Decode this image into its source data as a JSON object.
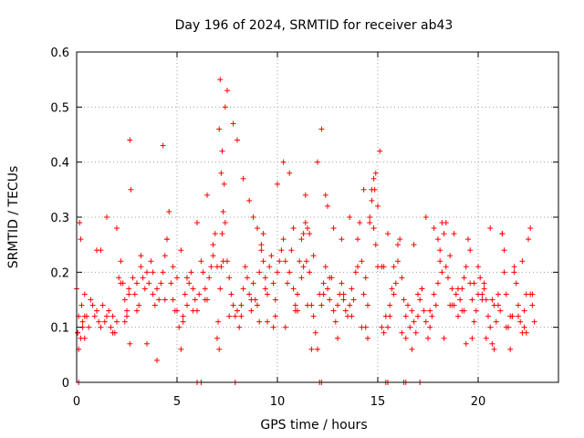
{
  "chart_data": {
    "type": "scatter",
    "title": "Day 196 of 2024, SRMTID for receiver ab43",
    "xlabel": "GPS time / hours",
    "ylabel": "SRMTID / TECUs",
    "xlim": [
      0,
      24
    ],
    "ylim": [
      0,
      0.6
    ],
    "xticks": [
      0,
      5,
      10,
      15,
      20
    ],
    "xtick_labels": [
      "0",
      "5",
      "10",
      "15",
      "20"
    ],
    "yticks": [
      0,
      0.1,
      0.2,
      0.3,
      0.4,
      0.5,
      0.6
    ],
    "ytick_labels": [
      "0",
      "0.1",
      "0.2",
      "0.3",
      "0.4",
      "0.5",
      "0.6"
    ],
    "grid": true,
    "marker": "+",
    "color": "#ff0000",
    "series": [
      {
        "name": "SRMTID",
        "x": [
          0.0,
          0.05,
          0.1,
          0.15,
          0.2,
          0.25,
          0.3,
          0.4,
          0.5,
          0.6,
          0.7,
          0.8,
          0.9,
          1.0,
          1.1,
          1.2,
          1.3,
          1.4,
          1.5,
          1.6,
          1.7,
          1.8,
          1.9,
          2.0,
          2.1,
          2.2,
          2.3,
          2.4,
          2.5,
          2.6,
          2.65,
          2.7,
          2.8,
          2.9,
          3.0,
          3.1,
          3.2,
          3.3,
          3.4,
          3.5,
          3.6,
          3.7,
          3.8,
          3.9,
          4.0,
          4.1,
          4.2,
          4.3,
          4.4,
          4.5,
          4.6,
          4.7,
          4.8,
          4.9,
          5.0,
          5.1,
          5.2,
          5.3,
          5.4,
          5.5,
          5.6,
          5.7,
          5.8,
          5.9,
          6.0,
          6.1,
          6.2,
          6.3,
          6.4,
          6.5,
          6.6,
          6.7,
          6.8,
          6.9,
          7.0,
          7.1,
          7.15,
          7.2,
          7.25,
          7.3,
          7.35,
          7.4,
          7.5,
          7.6,
          7.7,
          7.8,
          7.9,
          8.0,
          8.1,
          8.2,
          8.3,
          8.4,
          8.5,
          8.6,
          8.7,
          8.8,
          8.9,
          9.0,
          9.1,
          9.2,
          9.3,
          9.4,
          9.5,
          9.6,
          9.7,
          9.8,
          9.9,
          10.0,
          10.1,
          10.2,
          10.3,
          10.4,
          10.5,
          10.6,
          10.7,
          10.8,
          10.9,
          11.0,
          11.1,
          11.2,
          11.3,
          11.4,
          11.5,
          11.6,
          11.7,
          11.8,
          11.9,
          12.0,
          12.1,
          12.2,
          12.3,
          12.4,
          12.5,
          12.6,
          12.7,
          12.8,
          12.9,
          13.0,
          13.1,
          13.2,
          13.3,
          13.4,
          13.5,
          13.6,
          13.7,
          13.8,
          13.9,
          14.0,
          14.1,
          14.2,
          14.3,
          14.4,
          14.5,
          14.6,
          14.7,
          14.8,
          14.9,
          15.0,
          15.1,
          15.2,
          15.3,
          15.4,
          15.5,
          15.6,
          15.7,
          15.8,
          15.9,
          16.0,
          16.1,
          16.2,
          16.3,
          16.4,
          16.5,
          16.6,
          16.7,
          16.8,
          16.9,
          17.0,
          17.1,
          17.2,
          17.3,
          17.4,
          17.5,
          17.6,
          17.7,
          17.8,
          17.9,
          18.0,
          18.1,
          18.2,
          18.3,
          18.4,
          18.5,
          18.6,
          18.7,
          18.8,
          18.9,
          19.0,
          19.1,
          19.2,
          19.3,
          19.4,
          19.5,
          19.6,
          19.7,
          19.8,
          19.9,
          20.0,
          20.1,
          20.2,
          20.3,
          20.4,
          20.5,
          20.6,
          20.7,
          20.8,
          20.9,
          21.0,
          21.1,
          21.2,
          21.3,
          21.4,
          21.5,
          21.6,
          21.7,
          21.8,
          21.9,
          22.0,
          22.1,
          22.2,
          22.3,
          22.4,
          22.5,
          22.6,
          22.7,
          22.8,
          0.05,
          0.1,
          0.2,
          0.3,
          0.4,
          1.0,
          1.5,
          2.0,
          2.2,
          2.5,
          2.6,
          2.65,
          3.0,
          3.5,
          4.0,
          4.3,
          4.5,
          4.8,
          5.0,
          5.2,
          5.5,
          6.0,
          6.5,
          7.0,
          7.05,
          7.1,
          7.15,
          7.2,
          7.25,
          7.3,
          7.4,
          7.5,
          7.8,
          8.0,
          8.3,
          8.6,
          8.8,
          9.0,
          9.1,
          9.2,
          9.3,
          9.5,
          9.8,
          10.0,
          10.3,
          10.6,
          10.8,
          11.0,
          11.2,
          11.4,
          11.45,
          11.5,
          11.6,
          11.8,
          12.0,
          12.2,
          12.4,
          12.5,
          12.8,
          13.0,
          13.3,
          13.6,
          14.0,
          14.3,
          14.4,
          14.5,
          14.6,
          14.7,
          14.8,
          14.85,
          14.9,
          15.0,
          15.2,
          15.5,
          15.8,
          16.0,
          16.4,
          16.8,
          17.0,
          17.4,
          17.8,
          18.0,
          18.1,
          18.2,
          18.4,
          18.6,
          18.8,
          19.0,
          19.2,
          19.4,
          19.6,
          19.8,
          20.0,
          20.2,
          20.4,
          20.6,
          20.8,
          21.0,
          21.2,
          21.4,
          21.6,
          21.8,
          22.0,
          22.2,
          22.4,
          22.6,
          0.4,
          1.2,
          1.8,
          2.4,
          3.2,
          3.8,
          4.4,
          5.3,
          5.8,
          6.4,
          6.8,
          7.6,
          8.2,
          8.7,
          9.4,
          9.9,
          10.4,
          10.9,
          11.3,
          11.7,
          12.3,
          12.6,
          13.2,
          13.7,
          14.2,
          15.3,
          15.6,
          16.2,
          16.7,
          17.2,
          17.6,
          18.3,
          18.7,
          19.3,
          19.7,
          20.3,
          20.7,
          21.3,
          21.7,
          22.3,
          22.7,
          0.1,
          6.0,
          6.2,
          7.9,
          12.1,
          12.2,
          15.4,
          15.5,
          16.3,
          16.4,
          17.1
        ],
        "y": [
          0.17,
          0.09,
          0.06,
          0.29,
          0.26,
          0.14,
          0.11,
          0.16,
          0.12,
          0.1,
          0.15,
          0.14,
          0.12,
          0.13,
          0.11,
          0.1,
          0.14,
          0.11,
          0.12,
          0.13,
          0.1,
          0.12,
          0.09,
          0.11,
          0.19,
          0.22,
          0.18,
          0.15,
          0.13,
          0.17,
          0.44,
          0.35,
          0.19,
          0.16,
          0.18,
          0.14,
          0.21,
          0.19,
          0.17,
          0.2,
          0.18,
          0.22,
          0.16,
          0.14,
          0.17,
          0.15,
          0.18,
          0.2,
          0.23,
          0.26,
          0.31,
          0.18,
          0.15,
          0.13,
          0.19,
          0.1,
          0.06,
          0.12,
          0.16,
          0.14,
          0.18,
          0.2,
          0.17,
          0.15,
          0.13,
          0.16,
          0.22,
          0.2,
          0.17,
          0.15,
          0.19,
          0.21,
          0.25,
          0.27,
          0.08,
          0.46,
          0.55,
          0.38,
          0.42,
          0.31,
          0.36,
          0.29,
          0.22,
          0.19,
          0.16,
          0.14,
          0.12,
          0.13,
          0.1,
          0.12,
          0.17,
          0.21,
          0.19,
          0.16,
          0.13,
          0.18,
          0.15,
          0.14,
          0.2,
          0.25,
          0.22,
          0.19,
          0.16,
          0.21,
          0.23,
          0.18,
          0.15,
          0.2,
          0.22,
          0.24,
          0.26,
          0.22,
          0.18,
          0.2,
          0.24,
          0.17,
          0.13,
          0.16,
          0.22,
          0.19,
          0.27,
          0.34,
          0.28,
          0.2,
          0.14,
          0.12,
          0.09,
          0.06,
          0.16,
          0.14,
          0.18,
          0.21,
          0.17,
          0.15,
          0.19,
          0.13,
          0.11,
          0.14,
          0.16,
          0.18,
          0.15,
          0.13,
          0.12,
          0.14,
          0.17,
          0.15,
          0.2,
          0.26,
          0.29,
          0.22,
          0.16,
          0.19,
          0.14,
          0.3,
          0.35,
          0.28,
          0.25,
          0.32,
          0.42,
          0.21,
          0.09,
          0.12,
          0.1,
          0.14,
          0.17,
          0.16,
          0.18,
          0.22,
          0.26,
          0.19,
          0.15,
          0.12,
          0.14,
          0.1,
          0.13,
          0.11,
          0.09,
          0.12,
          0.15,
          0.17,
          0.13,
          0.11,
          0.08,
          0.1,
          0.12,
          0.16,
          0.14,
          0.18,
          0.24,
          0.29,
          0.27,
          0.21,
          0.19,
          0.23,
          0.17,
          0.14,
          0.16,
          0.12,
          0.15,
          0.17,
          0.13,
          0.21,
          0.26,
          0.18,
          0.15,
          0.11,
          0.13,
          0.16,
          0.19,
          0.16,
          0.18,
          0.15,
          0.12,
          0.1,
          0.07,
          0.14,
          0.11,
          0.16,
          0.13,
          0.27,
          0.2,
          0.16,
          0.1,
          0.06,
          0.12,
          0.21,
          0.18,
          0.14,
          0.11,
          0.09,
          0.13,
          0.16,
          0.26,
          0.28,
          0.16,
          0.11,
          0.09,
          0.12,
          0.08,
          0.1,
          0.08,
          0.24,
          0.3,
          0.28,
          0.18,
          0.12,
          0.16,
          0.07,
          0.13,
          0.07,
          0.04,
          0.43,
          0.26,
          0.21,
          0.13,
          0.24,
          0.19,
          0.29,
          0.34,
          0.21,
          0.11,
          0.06,
          0.17,
          0.21,
          0.27,
          0.22,
          0.5,
          0.53,
          0.47,
          0.44,
          0.37,
          0.33,
          0.3,
          0.28,
          0.11,
          0.24,
          0.27,
          0.11,
          0.1,
          0.36,
          0.4,
          0.38,
          0.28,
          0.13,
          0.26,
          0.29,
          0.22,
          0.14,
          0.27,
          0.23,
          0.4,
          0.46,
          0.34,
          0.32,
          0.28,
          0.08,
          0.16,
          0.3,
          0.21,
          0.35,
          0.1,
          0.08,
          0.29,
          0.33,
          0.37,
          0.35,
          0.38,
          0.21,
          0.1,
          0.27,
          0.21,
          0.25,
          0.08,
          0.25,
          0.16,
          0.3,
          0.28,
          0.26,
          0.22,
          0.2,
          0.29,
          0.14,
          0.27,
          0.17,
          0.13,
          0.07,
          0.24,
          0.18,
          0.21,
          0.15,
          0.08,
          0.28,
          0.06,
          0.14,
          0.27,
          0.1,
          0.12,
          0.2,
          0.12,
          0.22,
          0.09,
          0.16,
          0.12,
          0.24,
          0.09,
          0.11,
          0.23,
          0.2,
          0.15,
          0.11,
          0.13,
          0.15,
          0.23,
          0.12,
          0.14,
          0.15,
          0.17,
          0.12,
          0.1,
          0.14,
          0.21,
          0.06,
          0.16,
          0.19,
          0.26,
          0.12,
          0.1,
          0.21,
          0.12,
          0.09,
          0.06,
          0.17,
          0.13,
          0.08,
          0.14,
          0.19,
          0.08,
          0.17,
          0.15,
          0.24,
          0.12,
          0.1,
          0.14,
          0.0,
          0.0,
          0.0,
          0.0,
          0.0,
          0.0,
          0.0,
          0.0,
          0.0,
          0.0,
          0.0
        ]
      }
    ]
  }
}
